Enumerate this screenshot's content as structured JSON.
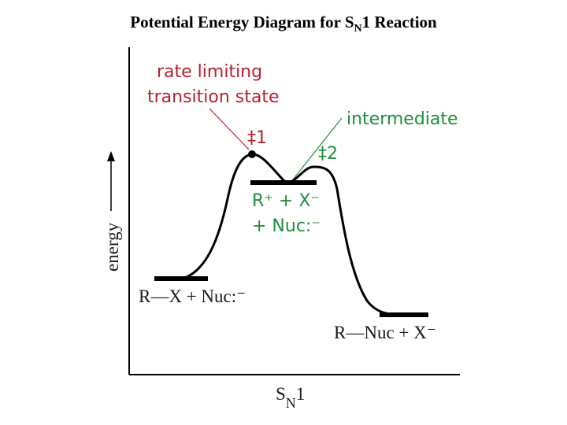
{
  "title": {
    "prefix": "Potential Energy Diagram for S",
    "subscript": "N",
    "suffix": "1 Reaction"
  },
  "colors": {
    "axis": "#000000",
    "curve": "#000000",
    "transition_state_label": "#b8202e",
    "intermediate_label": "#1f8f3a",
    "species_label": "#1a1a1a"
  },
  "axes": {
    "y_label": "energy",
    "x_label_main": "S",
    "x_label_sub": "N",
    "x_label_suffix": "1"
  },
  "annotations": {
    "rate_limiting_line1": "rate limiting",
    "rate_limiting_line2": "transition state",
    "intermediate": "intermediate",
    "ts1": "‡1",
    "ts2": "‡2"
  },
  "species": {
    "reactants": "R—X + Nuc:⁻",
    "intermediate_line1": "R⁺ + X⁻",
    "intermediate_line2": "+ Nuc:⁻",
    "products": "R—Nuc + X⁻"
  }
}
